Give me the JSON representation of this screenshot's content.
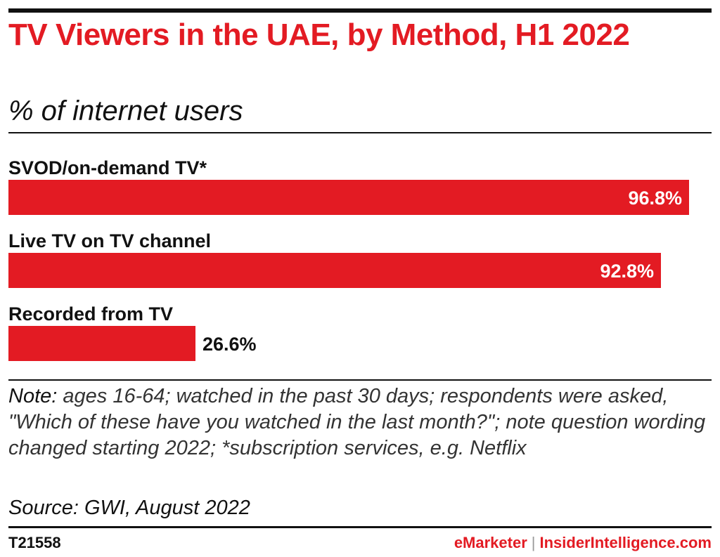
{
  "header": {
    "title": "TV Viewers in the UAE, by Method, H1 2022",
    "subtitle": "% of internet users"
  },
  "chart_data": {
    "type": "bar",
    "orientation": "horizontal",
    "categories": [
      "SVOD/on-demand TV*",
      "Live TV on TV channel",
      "Recorded from TV"
    ],
    "values": [
      96.8,
      92.8,
      26.6
    ],
    "value_labels": [
      "96.8%",
      "92.8%",
      "26.6%"
    ],
    "xlim": [
      0,
      100
    ],
    "grid": false,
    "bar_color": "#e31b23",
    "label_color_inside": "#ffffff",
    "label_color_outside": "#111111"
  },
  "footer": {
    "note_lead": "Note:",
    "note_text": "ages 16-64; watched in the past 30 days; respondents were asked, \"Which of these have you watched in the last month?\"; note question wording changed starting 2022; *subscription services, e.g. Netflix",
    "source": "Source: GWI, August 2022",
    "chart_id": "T21558",
    "brand_emarketer": "eMarketer",
    "brand_separator": "|",
    "brand_insider": "InsiderIntelligence.com"
  }
}
